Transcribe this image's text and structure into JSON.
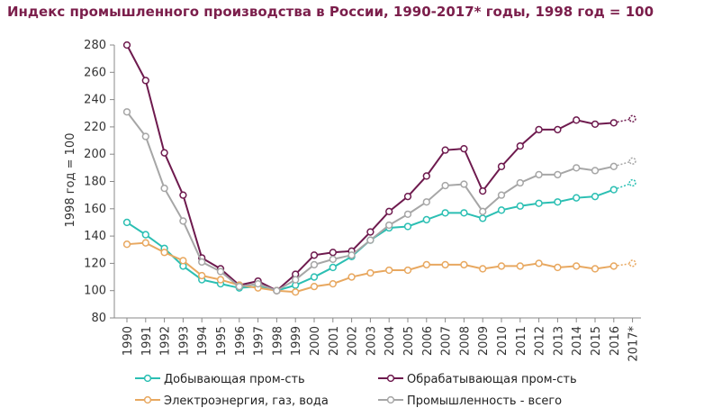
{
  "chart_data": {
    "type": "line",
    "title": "Индекс промышленного производства в России, 1990-2017* годы, 1998 год = 100",
    "xlabel": "",
    "ylabel": "1998 год = 100",
    "ylim": [
      80,
      280
    ],
    "yticks": [
      80,
      100,
      120,
      140,
      160,
      180,
      200,
      220,
      240,
      260,
      280
    ],
    "grid": false,
    "legend_position": "bottom",
    "categories": [
      "1990",
      "1991",
      "1992",
      "1993",
      "1994",
      "1995",
      "1996",
      "1997",
      "1998",
      "1999",
      "2000",
      "2001",
      "2002",
      "2003",
      "2004",
      "2005",
      "2006",
      "2007",
      "2008",
      "2009",
      "2010",
      "2011",
      "2012",
      "2013",
      "2014",
      "2015",
      "2016",
      "2017*"
    ],
    "series": [
      {
        "name": "Добывающая пром-сть",
        "color": "#2BBFB3",
        "values": [
          150,
          141,
          131,
          118,
          108,
          105,
          102,
          103,
          100,
          104,
          110,
          117,
          125,
          137,
          146,
          147,
          152,
          157,
          157,
          153,
          159,
          162,
          164,
          165,
          168,
          169,
          174,
          179
        ]
      },
      {
        "name": "Обрабатывающая пром-сть",
        "color": "#6E1A4E",
        "values": [
          280,
          254,
          201,
          170,
          124,
          116,
          104,
          107,
          100,
          112,
          126,
          128,
          129,
          143,
          158,
          169,
          184,
          203,
          204,
          173,
          191,
          206,
          218,
          218,
          225,
          222,
          223,
          226
        ]
      },
      {
        "name": "Электроэнергия, газ, вода",
        "color": "#E8A860",
        "values": [
          134,
          135,
          128,
          122,
          111,
          108,
          104,
          102,
          100,
          99,
          103,
          105,
          110,
          113,
          115,
          115,
          119,
          119,
          119,
          116,
          118,
          118,
          120,
          117,
          118,
          116,
          118,
          120
        ]
      },
      {
        "name": "Промышленность - всего",
        "color": "#A6A6A6",
        "values": [
          231,
          213,
          175,
          151,
          121,
          114,
          103,
          105,
          100,
          108,
          119,
          123,
          126,
          137,
          148,
          156,
          165,
          177,
          178,
          158,
          170,
          179,
          185,
          185,
          190,
          188,
          191,
          195
        ]
      }
    ],
    "projected_last_point": true
  }
}
